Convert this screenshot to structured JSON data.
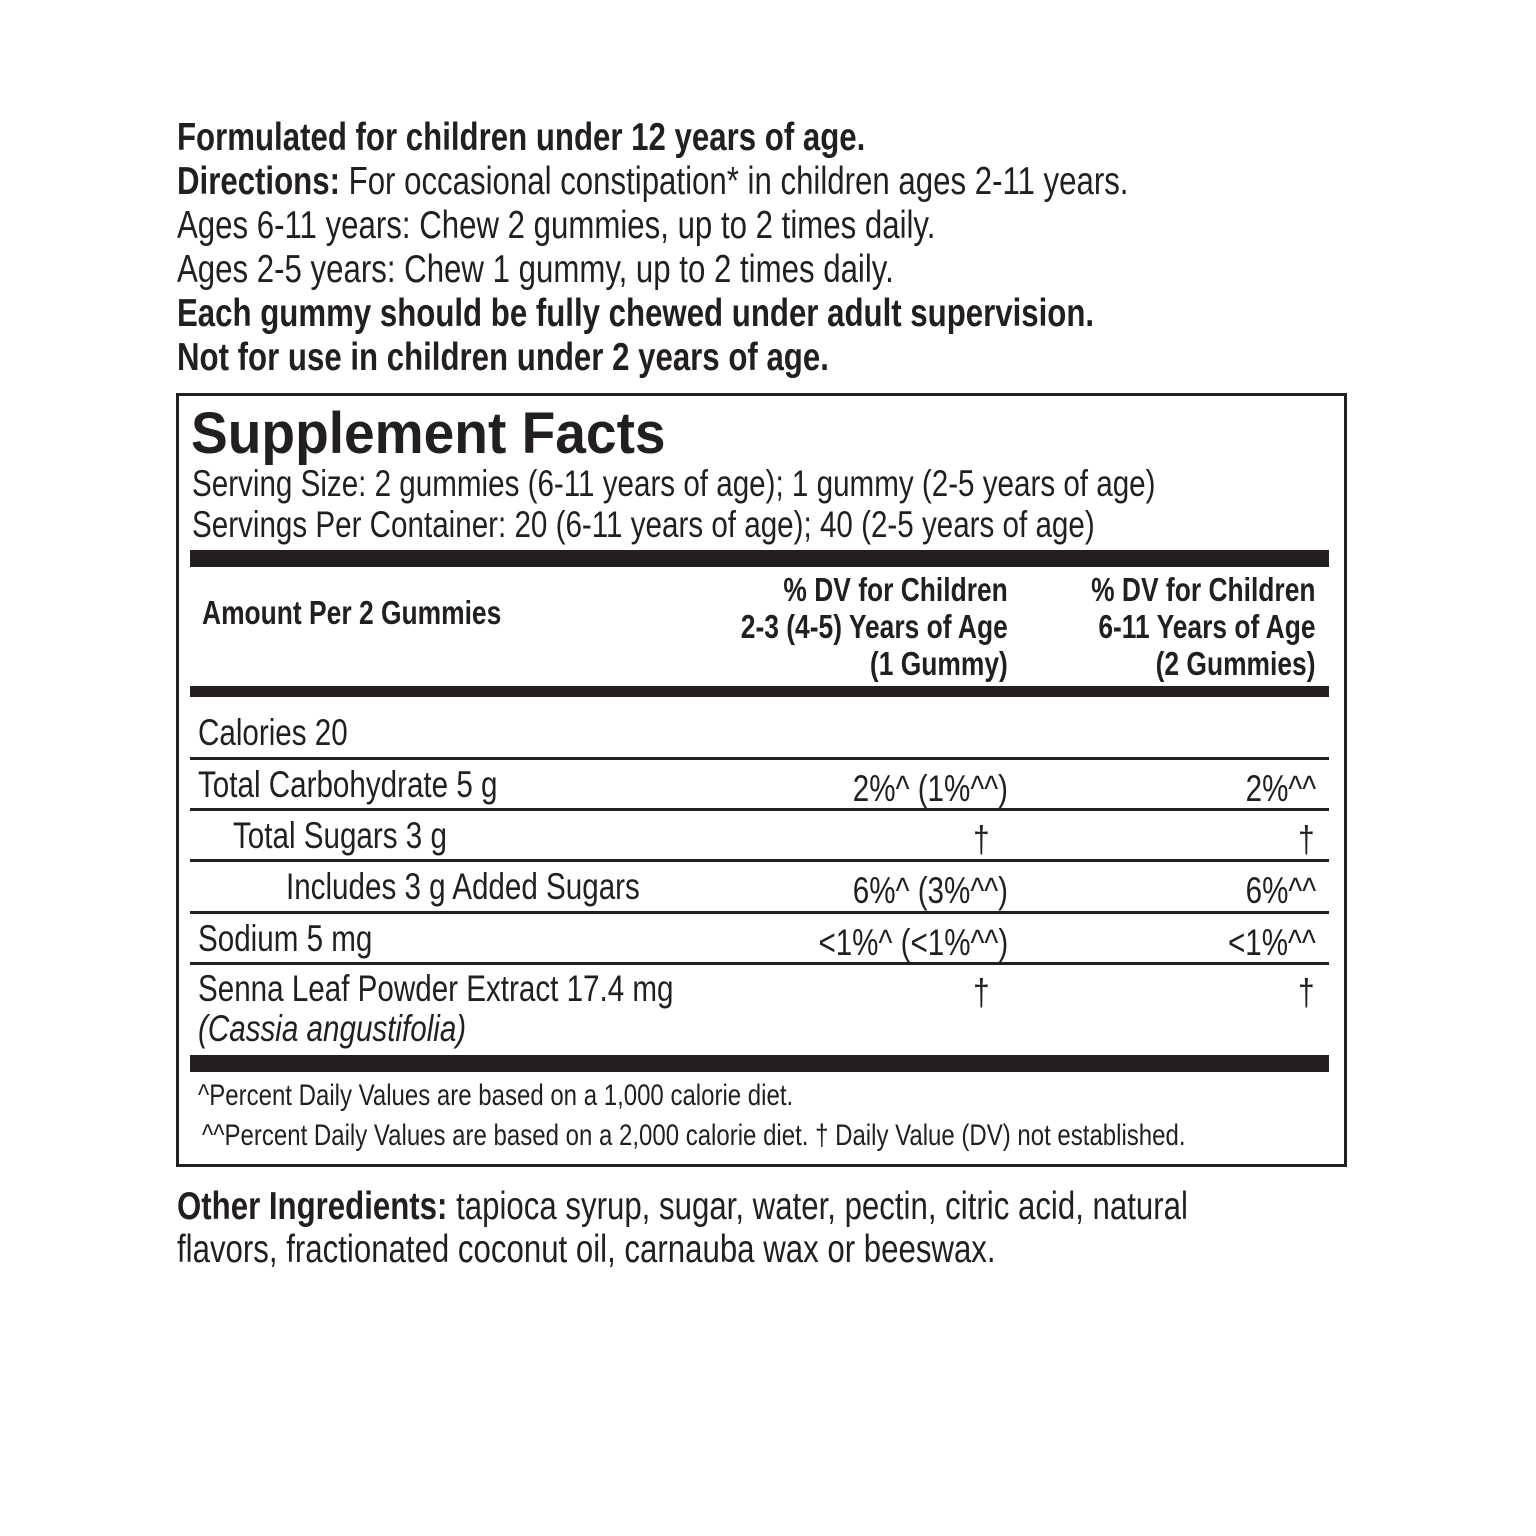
{
  "intro": {
    "line1": "Formulated for children under 12 years of age.",
    "directions_label": "Directions:",
    "directions_text": " For occasional constipation* in children ages 2-11 years.",
    "line3": "Ages 6-11 years: Chew 2 gummies, up to 2 times daily.",
    "line4": "Ages 2-5 years: Chew 1 gummy, up to 2 times daily.",
    "line5": "Each gummy should be fully chewed under adult supervision.",
    "line6": "Not for use in children under 2 years of age."
  },
  "facts": {
    "title": "Supplement Facts",
    "serving_size": "Serving Size: 2 gummies (6-11 years of age); 1 gummy (2-5 years of age)",
    "servings_per_container": "Servings Per Container: 20 (6-11 years of age); 40 (2-5 years of age)",
    "header": {
      "amount": "Amount Per 2 Gummies",
      "col1": [
        "% DV for Children",
        "2-3 (4-5) Years of Age",
        "(1 Gummy)"
      ],
      "col2": [
        "% DV for Children",
        "6-11 Years of Age",
        "(2 Gummies)"
      ]
    },
    "rows": [
      {
        "name": "Calories 20",
        "dv1": "",
        "dv2": ""
      },
      {
        "name": "Total Carbohydrate 5 g",
        "dv1": "2%^ (1%^^)",
        "dv2": "2%^^"
      },
      {
        "name": "Total Sugars 3 g",
        "dv1": "†",
        "dv2": "†"
      },
      {
        "name": "Includes 3 g Added Sugars",
        "dv1": "6%^ (3%^^)",
        "dv2": "6%^^"
      },
      {
        "name": "Sodium 5 mg",
        "dv1": "<1%^ (<1%^^)",
        "dv2": "<1%^^"
      },
      {
        "name": "Senna Leaf Powder Extract 17.4 mg",
        "sub": "(Cassia angustifolia)",
        "dv1": "†",
        "dv2": "†"
      }
    ],
    "footnote1": "^Percent Daily Values are based on a 1,000 calorie diet.",
    "footnote2": "^^Percent Daily Values are based on a 2,000 calorie diet. † Daily Value (DV) not established."
  },
  "other": {
    "label": "Other Ingredients:",
    "text1": " tapioca syrup, sugar, water, pectin, citric acid, natural",
    "text2": "flavors, fractionated coconut oil, carnauba wax or beeswax."
  }
}
